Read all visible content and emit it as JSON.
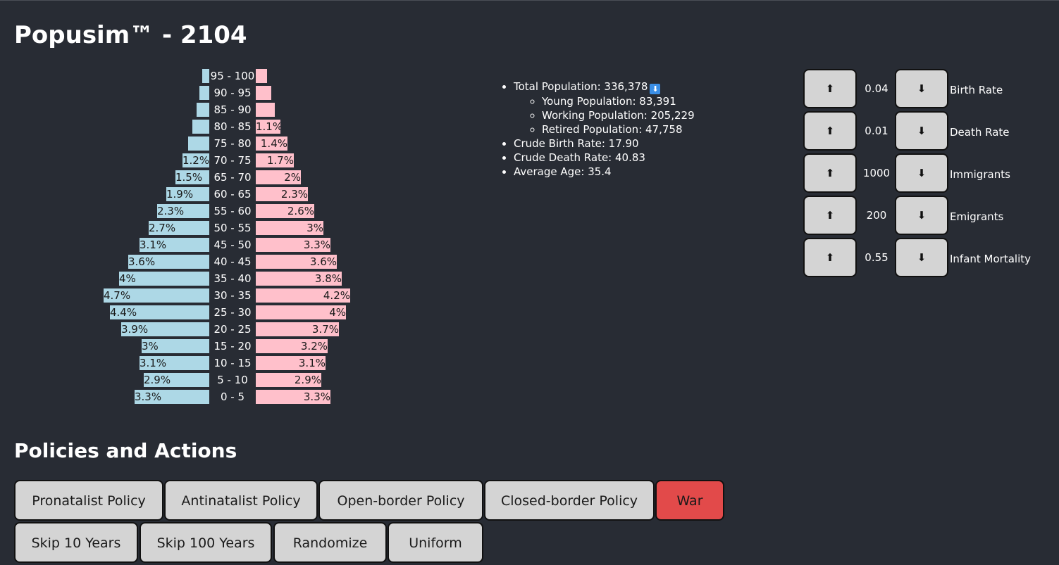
{
  "app": {
    "title": "Popusim™ - 2104"
  },
  "pyramid": {
    "rows": [
      {
        "age": "95 - 100",
        "male": 0.3,
        "female": 0.5,
        "male_label": "",
        "female_label": ""
      },
      {
        "age": "90 - 95",
        "male": 0.45,
        "female": 0.7,
        "male_label": "",
        "female_label": ""
      },
      {
        "age": "85 - 90",
        "male": 0.55,
        "female": 0.85,
        "male_label": "",
        "female_label": ""
      },
      {
        "age": "80 - 85",
        "male": 0.75,
        "female": 1.1,
        "male_label": "",
        "female_label": "1.1%"
      },
      {
        "age": "75 - 80",
        "male": 0.95,
        "female": 1.4,
        "male_label": "",
        "female_label": "1.4%"
      },
      {
        "age": "70 - 75",
        "male": 1.2,
        "female": 1.7,
        "male_label": "1.2%",
        "female_label": "1.7%"
      },
      {
        "age": "65 - 70",
        "male": 1.5,
        "female": 2.0,
        "male_label": "1.5%",
        "female_label": "2%"
      },
      {
        "age": "60 - 65",
        "male": 1.9,
        "female": 2.3,
        "male_label": "1.9%",
        "female_label": "2.3%"
      },
      {
        "age": "55 - 60",
        "male": 2.3,
        "female": 2.6,
        "male_label": "2.3%",
        "female_label": "2.6%"
      },
      {
        "age": "50 - 55",
        "male": 2.7,
        "female": 3.0,
        "male_label": "2.7%",
        "female_label": "3%"
      },
      {
        "age": "45 - 50",
        "male": 3.1,
        "female": 3.3,
        "male_label": "3.1%",
        "female_label": "3.3%"
      },
      {
        "age": "40 - 45",
        "male": 3.6,
        "female": 3.6,
        "male_label": "3.6%",
        "female_label": "3.6%"
      },
      {
        "age": "35 - 40",
        "male": 4.0,
        "female": 3.8,
        "male_label": "4%",
        "female_label": "3.8%"
      },
      {
        "age": "30 - 35",
        "male": 4.7,
        "female": 4.2,
        "male_label": "4.7%",
        "female_label": "4.2%"
      },
      {
        "age": "25 - 30",
        "male": 4.4,
        "female": 4.0,
        "male_label": "4.4%",
        "female_label": "4%"
      },
      {
        "age": "20 - 25",
        "male": 3.9,
        "female": 3.7,
        "male_label": "3.9%",
        "female_label": "3.7%"
      },
      {
        "age": "15 - 20",
        "male": 3.0,
        "female": 3.2,
        "male_label": "3%",
        "female_label": "3.2%"
      },
      {
        "age": "10 - 15",
        "male": 3.1,
        "female": 3.1,
        "male_label": "3.1%",
        "female_label": "3.1%"
      },
      {
        "age": "5 - 10",
        "male": 2.9,
        "female": 2.9,
        "male_label": "2.9%",
        "female_label": "2.9%"
      },
      {
        "age": "0 - 5",
        "male": 3.3,
        "female": 3.3,
        "male_label": "3.3%",
        "female_label": "3.3%"
      }
    ],
    "colors": {
      "male": "#add8e6",
      "female": "#ffc0cb"
    }
  },
  "stats": {
    "total_population": "Total Population: 336,378",
    "trend_icon": "down-arrow-icon",
    "young": "Young Population: 83,391",
    "working": "Working Population: 205,229",
    "retired": "Retired Population: 47,758",
    "crude_birth": "Crude Birth Rate: 17.90",
    "crude_death": "Crude Death Rate: 40.83",
    "average_age": "Average Age: 35.4"
  },
  "controls": {
    "up_symbol": "⬆",
    "down_symbol": "⬇",
    "rows": [
      {
        "value": "0.04",
        "label": "Birth Rate"
      },
      {
        "value": "0.01",
        "label": "Death Rate"
      },
      {
        "value": "1000",
        "label": "Immigrants"
      },
      {
        "value": "200",
        "label": "Emigrants"
      },
      {
        "value": "0.55",
        "label": "Infant Mortality"
      }
    ]
  },
  "actions": {
    "title": "Policies and Actions",
    "row1": [
      "Pronatalist Policy",
      "Antinatalist Policy",
      "Open-border Policy",
      "Closed-border Policy",
      "War"
    ],
    "row2": [
      "Skip 10 Years",
      "Skip 100 Years",
      "Randomize",
      "Uniform"
    ],
    "danger_color": "#e24a4a"
  }
}
